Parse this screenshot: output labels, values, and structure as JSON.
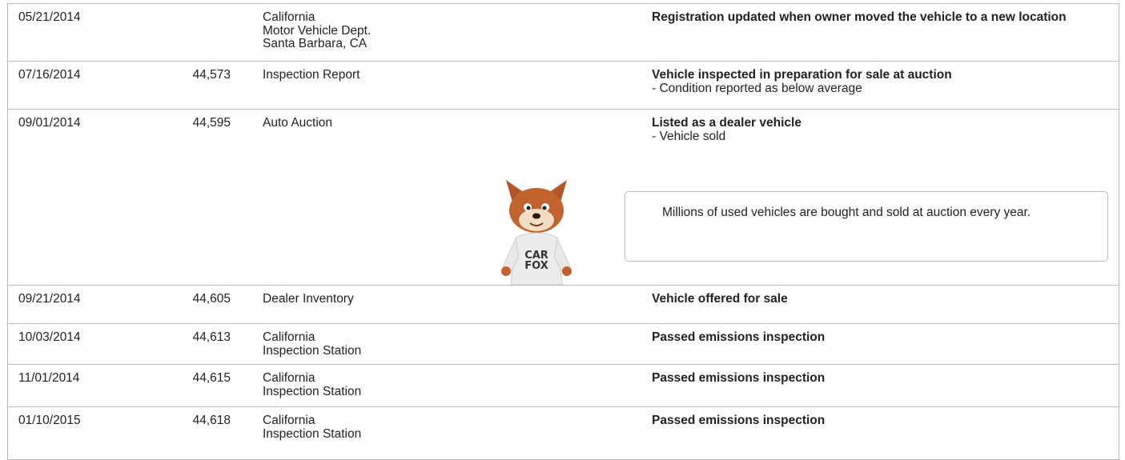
{
  "records": [
    {
      "date": "05/21/2014",
      "source": [
        "California",
        "Motor Vehicle Dept.",
        "Santa Barbara, CA"
      ],
      "comments": {
        "headline": "Registration updated when owner moved the vehicle to a new location",
        "details": []
      }
    },
    {
      "date": "07/16/2014",
      "mileage": "44,573",
      "source": [
        "Inspection Report"
      ],
      "comments": {
        "headline": "Vehicle inspected in preparation for sale at auction",
        "details": [
          "- Condition reported as below average"
        ]
      }
    },
    {
      "date": "09/01/2014",
      "mileage": "44,595",
      "source": [
        "Auto Auction"
      ],
      "comments": {
        "headline": "Listed as a dealer vehicle",
        "details": [
          "- Vehicle sold"
        ]
      },
      "callout": {
        "text": "Millions of used vehicles are bought and sold at auction every year.",
        "mascot_shirt": [
          "CAR",
          "FOX"
        ]
      }
    },
    {
      "date": "09/21/2014",
      "mileage": "44,605",
      "source": [
        "Dealer Inventory"
      ],
      "comments": {
        "headline": "Vehicle offered for sale",
        "details": []
      }
    },
    {
      "date": "10/03/2014",
      "mileage": "44,613",
      "source": [
        "California",
        "Inspection Station"
      ],
      "comments": {
        "headline": "Passed emissions inspection",
        "details": []
      }
    },
    {
      "date": "11/01/2014",
      "mileage": "44,615",
      "source": [
        "California",
        "Inspection Station"
      ],
      "comments": {
        "headline": "Passed emissions inspection",
        "details": []
      }
    },
    {
      "date": "01/10/2015",
      "mileage": "44,618",
      "source": [
        "California",
        "Inspection Station"
      ],
      "comments": {
        "headline": "Passed emissions inspection",
        "details": []
      }
    }
  ]
}
